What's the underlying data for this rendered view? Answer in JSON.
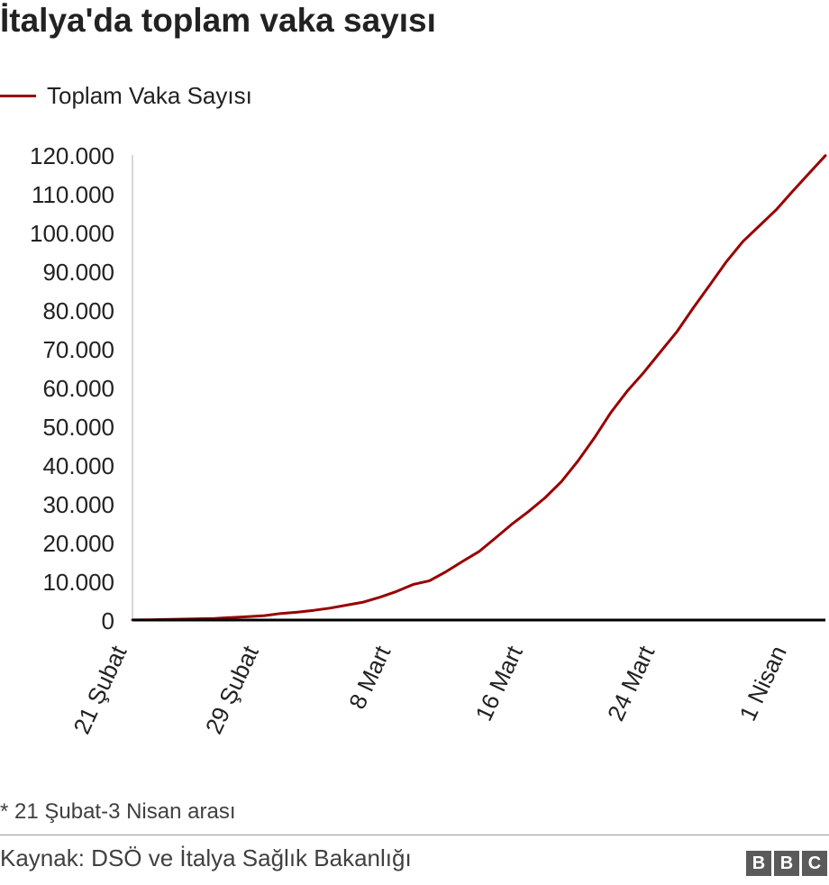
{
  "header": {
    "title": "İtalya'da toplam vaka sayısı"
  },
  "legend": {
    "label": "Toplam Vaka Sayısı",
    "color": "#990000"
  },
  "footer": {
    "note": "* 21 Şubat-3 Nisan arası",
    "source": "Kaynak: DSÖ ve İtalya Sağlık Bakanlığı",
    "logo_letters": [
      "B",
      "B",
      "C"
    ]
  },
  "chart_data": {
    "type": "line",
    "title": "İtalya'da toplam vaka sayısı",
    "xlabel": "",
    "ylabel": "",
    "ylim": [
      0,
      120000
    ],
    "yticks": [
      0,
      10000,
      20000,
      30000,
      40000,
      50000,
      60000,
      70000,
      80000,
      90000,
      100000,
      110000,
      120000
    ],
    "ytick_labels": [
      "0",
      "10.000",
      "20.000",
      "30.000",
      "40.000",
      "50.000",
      "60.000",
      "70.000",
      "80.000",
      "90.000",
      "100.000",
      "110.000",
      "120.000"
    ],
    "xtick_labels": [
      "21 Şubat",
      "29 Şubat",
      "8 Mart",
      "16 Mart",
      "24 Mart",
      "1 Nisan"
    ],
    "xtick_dates": [
      "2020-02-21",
      "2020-02-29",
      "2020-03-08",
      "2020-03-16",
      "2020-03-24",
      "2020-04-01"
    ],
    "grid": false,
    "legend_position": "top-left",
    "series_color": "#990000",
    "series": [
      {
        "name": "Toplam Vaka Sayısı",
        "x": [
          "2020-02-21",
          "2020-02-22",
          "2020-02-23",
          "2020-02-24",
          "2020-02-25",
          "2020-02-26",
          "2020-02-27",
          "2020-02-28",
          "2020-02-29",
          "2020-03-01",
          "2020-03-02",
          "2020-03-03",
          "2020-03-04",
          "2020-03-05",
          "2020-03-06",
          "2020-03-07",
          "2020-03-08",
          "2020-03-09",
          "2020-03-10",
          "2020-03-11",
          "2020-03-12",
          "2020-03-13",
          "2020-03-14",
          "2020-03-15",
          "2020-03-16",
          "2020-03-17",
          "2020-03-18",
          "2020-03-19",
          "2020-03-20",
          "2020-03-21",
          "2020-03-22",
          "2020-03-23",
          "2020-03-24",
          "2020-03-25",
          "2020-03-26",
          "2020-03-27",
          "2020-03-28",
          "2020-03-29",
          "2020-03-30",
          "2020-03-31",
          "2020-04-01",
          "2020-04-02",
          "2020-04-03"
        ],
        "values": [
          20,
          79,
          150,
          229,
          322,
          400,
          650,
          888,
          1128,
          1694,
          2036,
          2502,
          3089,
          3858,
          4636,
          5883,
          7375,
          9172,
          10149,
          12462,
          15113,
          17660,
          21157,
          24747,
          27980,
          31506,
          35713,
          41035,
          47021,
          53578,
          59138,
          63927,
          69176,
          74386,
          80589,
          86498,
          92472,
          97689,
          101739,
          105792,
          110574,
          115242,
          119827
        ]
      }
    ]
  }
}
